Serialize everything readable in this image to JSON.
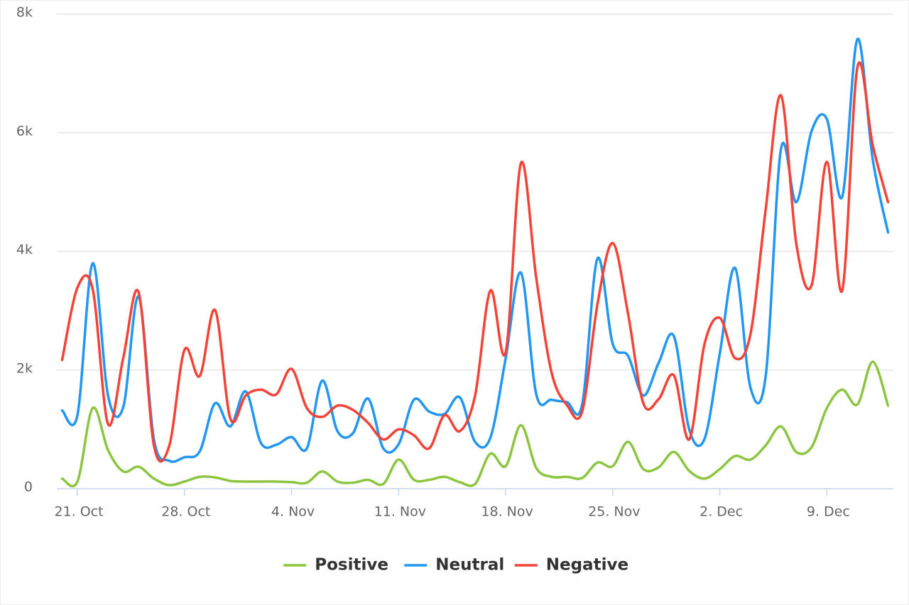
{
  "chart_data": {
    "type": "line",
    "categories": [
      null,
      "21. Oct",
      null,
      null,
      null,
      null,
      null,
      null,
      "28. Oct",
      null,
      null,
      null,
      null,
      null,
      null,
      "4. Nov",
      null,
      null,
      null,
      null,
      null,
      null,
      "11. Nov",
      null,
      null,
      null,
      null,
      null,
      null,
      "18. Nov",
      null,
      null,
      null,
      null,
      null,
      null,
      "25. Nov",
      null,
      null,
      null,
      null,
      null,
      null,
      "2. Dec",
      null,
      null,
      null,
      null,
      null,
      null,
      "9. Dec",
      null,
      null,
      null,
      null
    ],
    "series": [
      {
        "name": "Positive",
        "color": "#8cc640",
        "values": [
          170,
          120,
          1360,
          650,
          290,
          370,
          170,
          60,
          120,
          200,
          190,
          130,
          120,
          120,
          120,
          110,
          100,
          290,
          120,
          100,
          150,
          80,
          490,
          150,
          150,
          200,
          110,
          80,
          590,
          380,
          1070,
          350,
          200,
          200,
          180,
          440,
          380,
          790,
          330,
          360,
          620,
          300,
          170,
          330,
          550,
          490,
          730,
          1050,
          620,
          700,
          1360,
          1670,
          1420,
          2140,
          1400
        ]
      },
      {
        "name": "Neutral",
        "color": "#2196f3",
        "values": [
          1320,
          1240,
          3800,
          1570,
          1380,
          3240,
          830,
          470,
          530,
          630,
          1440,
          1050,
          1640,
          770,
          740,
          870,
          680,
          1820,
          970,
          930,
          1520,
          680,
          750,
          1500,
          1300,
          1260,
          1540,
          790,
          860,
          2200,
          3640,
          1590,
          1500,
          1460,
          1420,
          3880,
          2440,
          2240,
          1570,
          2120,
          2570,
          1000,
          840,
          2280,
          3720,
          1710,
          1900,
          5730,
          4830,
          6030,
          6230,
          4920,
          7580,
          5550,
          4320
        ]
      },
      {
        "name": "Negative",
        "color": "#f44336",
        "values": [
          2170,
          3390,
          3360,
          1090,
          2210,
          3310,
          730,
          720,
          2340,
          1900,
          3010,
          1180,
          1570,
          1670,
          1590,
          2020,
          1360,
          1210,
          1400,
          1330,
          1110,
          830,
          1000,
          900,
          680,
          1240,
          970,
          1570,
          3340,
          2300,
          5490,
          3550,
          1960,
          1410,
          1300,
          3110,
          4140,
          2950,
          1440,
          1510,
          1910,
          830,
          2440,
          2880,
          2200,
          2600,
          4710,
          6630,
          4130,
          3430,
          5510,
          3340,
          7110,
          5790,
          4830
        ]
      }
    ],
    "ylim": [
      0,
      8000
    ],
    "yticks": [
      0,
      {
        "value": 2000,
        "label": "2k"
      },
      {
        "value": 4000,
        "label": "4k"
      },
      {
        "value": 6000,
        "label": "6k"
      },
      {
        "value": 8000,
        "label": "8k"
      }
    ],
    "grid": true,
    "legend": "bottom"
  }
}
